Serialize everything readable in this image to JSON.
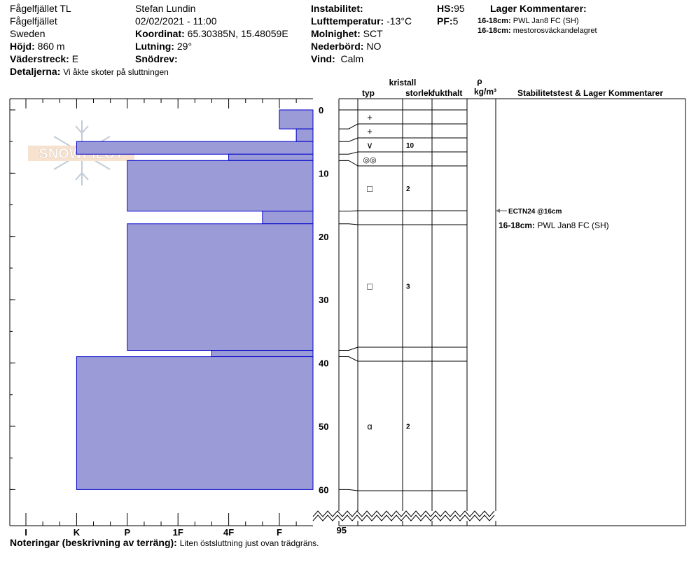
{
  "header": {
    "site": "Fågelfjället TL",
    "area": "Fågelfjället",
    "country": "Sweden",
    "elevation_label": "Höjd:",
    "elevation": "860 m",
    "aspect_label": "Väderstreck:",
    "aspect": "E",
    "details_label": "Detaljerna:",
    "details": "Vi åkte skoter på sluttningen",
    "observer": "Stefan Lundin",
    "datetime": "02/02/2021 - 11:00",
    "coord_label": "Koordinat:",
    "coord": "65.30385N, 15.48059E",
    "slope_label": "Lutning:",
    "slope": "29°",
    "drift_label": "Snödrev:",
    "drift": "",
    "instability_label": "Instabilitet:",
    "instability": "",
    "airtemp_label": "Lufttemperatur:",
    "airtemp": "-13°C",
    "cloud_label": "Molnighet:",
    "cloud": "SCT",
    "precip_label": "Nederbörd:",
    "precip": "NO",
    "wind_label": "Vind:",
    "wind": "Calm",
    "hs_label": "HS:",
    "hs": "95",
    "pf_label": "PF:",
    "pf": "5",
    "layer_comments_title": "Lager Kommentarer:",
    "layer_comments": [
      {
        "range": "16-18cm:",
        "text": "PWL Jan8 FC (SH)"
      },
      {
        "range": "16-18cm:",
        "text": "mestorosväckandelagret"
      }
    ]
  },
  "table_headers": {
    "crystal": "kristall",
    "type": "typ",
    "size": "storlek",
    "moisture": "fukthalt",
    "rho": "ρ",
    "density": "kg/m³",
    "comments": "Stabilitetstest & Lager Kommentarer"
  },
  "logo": {
    "text": "SNOWPILOT"
  },
  "hardness_axis": [
    "I",
    "K",
    "P",
    "1F",
    "4F",
    "F"
  ],
  "depth_axis": {
    "ticks": [
      "0",
      "10",
      "20",
      "30",
      "40",
      "50",
      "60"
    ],
    "bottom": "95"
  },
  "layers": [
    {
      "top": 0,
      "bottom": 3,
      "hardness": "F"
    },
    {
      "top": 3,
      "bottom": 5,
      "hardness": "F-"
    },
    {
      "top": 5,
      "bottom": 7,
      "hardness": "K"
    },
    {
      "top": 7,
      "bottom": 8,
      "hardness": "4F"
    },
    {
      "top": 8,
      "bottom": 16,
      "hardness": "P"
    },
    {
      "top": 16,
      "bottom": 18,
      "hardness": "F+"
    },
    {
      "top": 18,
      "bottom": 38,
      "hardness": "P"
    },
    {
      "top": 38,
      "bottom": 39,
      "hardness": "4F+"
    },
    {
      "top": 39,
      "bottom": 60,
      "hardness": "K"
    }
  ],
  "grain_rows": [
    {
      "type": "+",
      "size": ""
    },
    {
      "type": "+",
      "size": ""
    },
    {
      "type": "∨",
      "size": "10"
    },
    {
      "type": "◎◎",
      "size": ""
    },
    {
      "type": "□",
      "size": "2"
    },
    {
      "type": "",
      "size": ""
    },
    {
      "type": "□",
      "size": "3"
    },
    {
      "type": "",
      "size": ""
    },
    {
      "type": "ɑ",
      "size": "2"
    },
    {
      "type": "",
      "size": ""
    }
  ],
  "stability_test": {
    "label": "ECTN24 @16cm"
  },
  "profile_comment": {
    "range": "16-18cm:",
    "text": "PWL Jan8 FC (SH)"
  },
  "notes": {
    "label": "Noteringar (beskrivning av terräng):",
    "text": "Liten östsluttning just ovan trädgräns."
  },
  "colors": {
    "layer_fill": "#9b9bd7",
    "layer_stroke": "#0000cc"
  }
}
